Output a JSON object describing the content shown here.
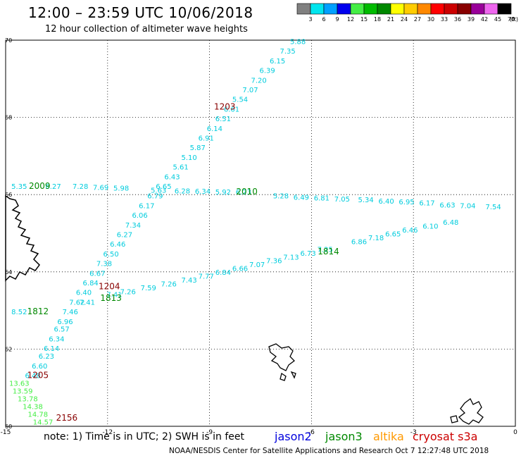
{
  "title": "12:00 – 23:59 UTC 10/06/2018",
  "subtitle": "12 hour collection of altimeter wave heights",
  "note": "note:  1) Time is in UTC;  2) SWH is in feet",
  "credit": "NOAA/NESDIS Center for Satellite Applications and Research    Oct  7 12:27:48 UTC 2018",
  "satellites": [
    {
      "name": "jason2",
      "color": "#0000dd"
    },
    {
      "name": "jason3",
      "color": "#008800"
    },
    {
      "name": "altika",
      "color": "#ff9900"
    },
    {
      "name": "cryosat s3a",
      "color": "#cc0000"
    }
  ],
  "color_scale": {
    "unit": "(ft)",
    "swatches": [
      {
        "label": "3",
        "color": "#808080"
      },
      {
        "label": "6",
        "color": "#00e5ee"
      },
      {
        "label": "9",
        "color": "#00a0ff"
      },
      {
        "label": "12",
        "color": "#0000ee"
      },
      {
        "label": "15",
        "color": "#44ee44"
      },
      {
        "label": "18",
        "color": "#00bb00"
      },
      {
        "label": "21",
        "color": "#008800"
      },
      {
        "label": "24",
        "color": "#ffff00"
      },
      {
        "label": "27",
        "color": "#ffcc00"
      },
      {
        "label": "30",
        "color": "#ff8800"
      },
      {
        "label": "33",
        "color": "#ff0000"
      },
      {
        "label": "36",
        "color": "#cc0000"
      },
      {
        "label": "39",
        "color": "#880000"
      },
      {
        "label": "42",
        "color": "#990099"
      },
      {
        "label": "45",
        "color": "#ee66ee"
      },
      {
        "label": "70",
        "color": "#000000"
      }
    ]
  },
  "axes": {
    "lon_ticks": [
      -15,
      -12,
      -9,
      -6,
      -3,
      0
    ],
    "lat_ticks": [
      60,
      62,
      64,
      66,
      68,
      70
    ],
    "lon_range": [
      -15,
      0
    ],
    "lat_range": [
      60,
      70
    ],
    "grid": true
  },
  "passes": [
    {
      "time": "1203",
      "color": "#880000",
      "label_at": [
        -8.55,
        68.2
      ],
      "points": [
        {
          "lon": -6.4,
          "lat": 69.9,
          "v": "5.88",
          "c": "#00ccdd"
        },
        {
          "lon": -6.7,
          "lat": 69.65,
          "v": "7.35",
          "c": "#00ccdd"
        },
        {
          "lon": -7.0,
          "lat": 69.4,
          "v": "6.15",
          "c": "#00ccdd"
        },
        {
          "lon": -7.3,
          "lat": 69.15,
          "v": "6.39",
          "c": "#00ccdd"
        },
        {
          "lon": -7.55,
          "lat": 68.9,
          "v": "7.20",
          "c": "#00ccdd"
        },
        {
          "lon": -7.8,
          "lat": 68.65,
          "v": "7.07",
          "c": "#00ccdd"
        },
        {
          "lon": -8.1,
          "lat": 68.4,
          "v": "5.54",
          "c": "#00ccdd"
        },
        {
          "lon": -8.35,
          "lat": 68.15,
          "v": "6.61",
          "c": "#00ccdd"
        },
        {
          "lon": -8.6,
          "lat": 67.9,
          "v": "6.51",
          "c": "#00ccdd"
        },
        {
          "lon": -8.85,
          "lat": 67.65,
          "v": "6.14",
          "c": "#00ccdd"
        },
        {
          "lon": -9.1,
          "lat": 67.4,
          "v": "6.91",
          "c": "#00ccdd"
        },
        {
          "lon": -9.35,
          "lat": 67.15,
          "v": "5.87",
          "c": "#00ccdd"
        },
        {
          "lon": -9.6,
          "lat": 66.9,
          "v": "5.10",
          "c": "#00ccdd"
        },
        {
          "lon": -9.85,
          "lat": 66.65,
          "v": "5.61",
          "c": "#00ccdd"
        },
        {
          "lon": -10.1,
          "lat": 66.4,
          "v": "6.43",
          "c": "#00ccdd"
        },
        {
          "lon": -10.35,
          "lat": 66.15,
          "v": "6.65",
          "c": "#00ccdd"
        },
        {
          "lon": -10.6,
          "lat": 65.9,
          "v": "6.79",
          "c": "#00ccdd"
        },
        {
          "lon": -10.85,
          "lat": 65.65,
          "v": "6.17",
          "c": "#00ccdd"
        },
        {
          "lon": -11.05,
          "lat": 65.4,
          "v": "6.06",
          "c": "#00ccdd"
        },
        {
          "lon": -11.25,
          "lat": 65.15,
          "v": "7.34",
          "c": "#00ccdd"
        },
        {
          "lon": -11.5,
          "lat": 64.9,
          "v": "6.27",
          "c": "#00ccdd"
        },
        {
          "lon": -11.7,
          "lat": 64.65,
          "v": "6.46",
          "c": "#00ccdd"
        },
        {
          "lon": -11.9,
          "lat": 64.4,
          "v": "6.50",
          "c": "#00ccdd"
        },
        {
          "lon": -12.1,
          "lat": 64.15,
          "v": "7.38",
          "c": "#00ccdd"
        },
        {
          "lon": -12.3,
          "lat": 63.9,
          "v": "6.67",
          "c": "#00ccdd"
        },
        {
          "lon": -12.5,
          "lat": 63.65,
          "v": "6.84",
          "c": "#00ccdd"
        },
        {
          "lon": -12.7,
          "lat": 63.4,
          "v": "6.40",
          "c": "#00ccdd"
        }
      ]
    },
    {
      "time": "1204",
      "color": "#880000",
      "label_at": [
        -11.95,
        63.55
      ],
      "points": [
        {
          "lon": -12.9,
          "lat": 63.15,
          "v": "7.62",
          "c": "#00ccdd"
        },
        {
          "lon": -13.1,
          "lat": 62.9,
          "v": "7.46",
          "c": "#00ccdd"
        },
        {
          "lon": -13.25,
          "lat": 62.65,
          "v": "6.96",
          "c": "#00ccdd"
        },
        {
          "lon": -13.35,
          "lat": 62.45,
          "v": "6.57",
          "c": "#00ccdd"
        },
        {
          "lon": -13.5,
          "lat": 62.2,
          "v": "6.34",
          "c": "#00ccdd"
        },
        {
          "lon": -13.65,
          "lat": 61.95,
          "v": "6.14",
          "c": "#00ccdd"
        },
        {
          "lon": -13.8,
          "lat": 61.75,
          "v": "6.23",
          "c": "#00ccdd"
        },
        {
          "lon": -14.0,
          "lat": 61.5,
          "v": "6.60",
          "c": "#00ccdd"
        },
        {
          "lon": -14.2,
          "lat": 61.25,
          "v": "6.48",
          "c": "#00ccdd"
        }
      ]
    },
    {
      "time": "1205",
      "color": "#880000",
      "label_at": [
        -14.05,
        61.25
      ],
      "points": []
    },
    {
      "time": "2156",
      "color": "#880000",
      "label_at": [
        -13.2,
        60.15
      ],
      "points": [
        {
          "lon": -14.6,
          "lat": 61.05,
          "v": "13.63",
          "c": "#44ee44"
        },
        {
          "lon": -14.5,
          "lat": 60.85,
          "v": "13.59",
          "c": "#44ee44"
        },
        {
          "lon": -14.35,
          "lat": 60.65,
          "v": "13.78",
          "c": "#44ee44"
        },
        {
          "lon": -14.2,
          "lat": 60.45,
          "v": "14.38",
          "c": "#44ee44"
        },
        {
          "lon": -14.05,
          "lat": 60.25,
          "v": "14.78",
          "c": "#44ee44"
        },
        {
          "lon": -13.9,
          "lat": 60.05,
          "v": "14.57",
          "c": "#44ee44"
        }
      ]
    },
    {
      "time": "2009",
      "color": "#008800",
      "label_at": [
        -14.0,
        66.15
      ],
      "points": [
        {
          "lon": -14.6,
          "lat": 66.15,
          "v": "5.35",
          "c": "#00ccdd"
        },
        {
          "lon": -13.6,
          "lat": 66.15,
          "v": "6.27",
          "c": "#00ccdd"
        },
        {
          "lon": -12.8,
          "lat": 66.15,
          "v": "7.28",
          "c": "#00ccdd"
        },
        {
          "lon": -12.2,
          "lat": 66.12,
          "v": "7.69",
          "c": "#00ccdd"
        },
        {
          "lon": -11.6,
          "lat": 66.1,
          "v": "5.98",
          "c": "#00ccdd"
        }
      ]
    },
    {
      "time": "2010",
      "color": "#008800",
      "label_at": [
        -7.9,
        66.0
      ],
      "points": [
        {
          "lon": -10.5,
          "lat": 66.05,
          "v": "5.63",
          "c": "#00ccdd"
        },
        {
          "lon": -9.8,
          "lat": 66.03,
          "v": "6.28",
          "c": "#00ccdd"
        },
        {
          "lon": -9.2,
          "lat": 66.02,
          "v": "6.34",
          "c": "#00ccdd"
        },
        {
          "lon": -8.6,
          "lat": 66.0,
          "v": "5.92",
          "c": "#00ccdd"
        },
        {
          "lon": -8.0,
          "lat": 66.0,
          "v": "6.23",
          "c": "#00ccdd"
        },
        {
          "lon": -6.9,
          "lat": 65.9,
          "v": "5.28",
          "c": "#00ccdd"
        },
        {
          "lon": -6.3,
          "lat": 65.87,
          "v": "6.49",
          "c": "#00ccdd"
        },
        {
          "lon": -5.7,
          "lat": 65.85,
          "v": "6.81",
          "c": "#00ccdd"
        },
        {
          "lon": -5.1,
          "lat": 65.82,
          "v": "7.05",
          "c": "#00ccdd"
        },
        {
          "lon": -4.4,
          "lat": 65.8,
          "v": "5.34",
          "c": "#00ccdd"
        },
        {
          "lon": -3.8,
          "lat": 65.77,
          "v": "6.40",
          "c": "#00ccdd"
        },
        {
          "lon": -3.2,
          "lat": 65.75,
          "v": "6.95",
          "c": "#00ccdd"
        },
        {
          "lon": -2.6,
          "lat": 65.72,
          "v": "6.17",
          "c": "#00ccdd"
        },
        {
          "lon": -2.0,
          "lat": 65.67,
          "v": "6.63",
          "c": "#00ccdd"
        },
        {
          "lon": -1.4,
          "lat": 65.65,
          "v": "7.04",
          "c": "#00ccdd"
        },
        {
          "lon": -0.65,
          "lat": 65.62,
          "v": "7.54",
          "c": "#00ccdd"
        }
      ]
    },
    {
      "time": "1812",
      "color": "#008800",
      "label_at": [
        -14.05,
        62.9
      ],
      "points": [
        {
          "lon": -14.6,
          "lat": 62.9,
          "v": "8.52",
          "c": "#00ccdd"
        }
      ]
    },
    {
      "time": "1813",
      "color": "#008800",
      "label_at": [
        -11.9,
        63.25
      ],
      "points": [
        {
          "lon": -12.6,
          "lat": 63.15,
          "v": "7.41",
          "c": "#00ccdd"
        },
        {
          "lon": -11.8,
          "lat": 63.35,
          "v": "7.41",
          "c": "#00ccdd"
        },
        {
          "lon": -11.4,
          "lat": 63.42,
          "v": "7.26",
          "c": "#00ccdd"
        },
        {
          "lon": -10.8,
          "lat": 63.52,
          "v": "7.59",
          "c": "#00ccdd"
        },
        {
          "lon": -10.2,
          "lat": 63.62,
          "v": "7.26",
          "c": "#00ccdd"
        },
        {
          "lon": -9.6,
          "lat": 63.72,
          "v": "7.43",
          "c": "#00ccdd"
        },
        {
          "lon": -9.1,
          "lat": 63.82,
          "v": "7.77",
          "c": "#00ccdd"
        },
        {
          "lon": -8.6,
          "lat": 63.92,
          "v": "6.84",
          "c": "#00ccdd"
        },
        {
          "lon": -8.1,
          "lat": 64.02,
          "v": "6.66",
          "c": "#00ccdd"
        },
        {
          "lon": -7.6,
          "lat": 64.12,
          "v": "7.07",
          "c": "#00ccdd"
        },
        {
          "lon": -7.1,
          "lat": 64.22,
          "v": "7.36",
          "c": "#00ccdd"
        },
        {
          "lon": -6.6,
          "lat": 64.32,
          "v": "7.13",
          "c": "#00ccdd"
        }
      ]
    },
    {
      "time": "1814",
      "color": "#008800",
      "label_at": [
        -5.5,
        64.45
      ],
      "points": [
        {
          "lon": -6.1,
          "lat": 64.42,
          "v": "6.73",
          "c": "#00ccdd"
        },
        {
          "lon": -5.6,
          "lat": 64.52,
          "v": "7.25",
          "c": "#00ccdd"
        },
        {
          "lon": -4.6,
          "lat": 64.72,
          "v": "6.86",
          "c": "#00ccdd"
        },
        {
          "lon": -4.1,
          "lat": 64.82,
          "v": "7.18",
          "c": "#00ccdd"
        },
        {
          "lon": -3.6,
          "lat": 64.92,
          "v": "6.65",
          "c": "#00ccdd"
        },
        {
          "lon": -3.1,
          "lat": 65.02,
          "v": "6.46",
          "c": "#00ccdd"
        },
        {
          "lon": -2.5,
          "lat": 65.12,
          "v": "6.10",
          "c": "#00ccdd"
        },
        {
          "lon": -1.9,
          "lat": 65.22,
          "v": "6.48",
          "c": "#00ccdd"
        }
      ]
    }
  ]
}
